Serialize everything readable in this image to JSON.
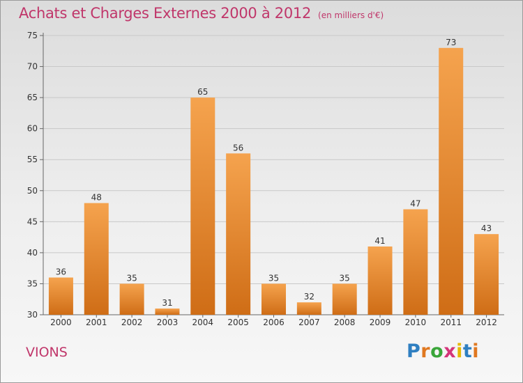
{
  "title": "Achats et Charges Externes 2000 à 2012",
  "subtitle": "(en milliers d'€)",
  "commune": "VIONS",
  "logo": {
    "letters": [
      "P",
      "r",
      "o",
      "x",
      "i",
      "t",
      "i"
    ],
    "colors": [
      "#2f7fc1",
      "#e07820",
      "#3aa63a",
      "#d4357a",
      "#e6b800",
      "#2f7fc1",
      "#e07820"
    ]
  },
  "colors": {
    "bar_top": "#f5a34e",
    "bar_bottom": "#cf6d16",
    "text_accent": "#c0366a"
  },
  "chart_data": {
    "type": "bar",
    "title": "Achats et Charges Externes 2000 à 2012",
    "subtitle": "(en milliers d'€)",
    "categories": [
      "2000",
      "2001",
      "2002",
      "2003",
      "2004",
      "2005",
      "2006",
      "2007",
      "2008",
      "2009",
      "2010",
      "2011",
      "2012"
    ],
    "values": [
      36,
      48,
      35,
      31,
      65,
      56,
      35,
      32,
      35,
      41,
      47,
      73,
      43
    ],
    "ylim": [
      30,
      75
    ],
    "yticks": [
      30,
      35,
      40,
      45,
      50,
      55,
      60,
      65,
      70,
      75
    ],
    "grid": true,
    "data_labels": true
  }
}
